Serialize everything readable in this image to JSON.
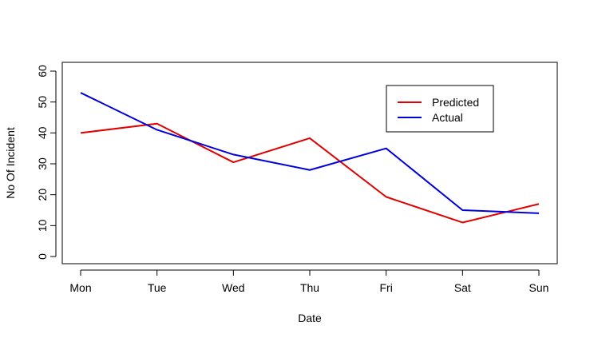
{
  "chart_data": {
    "type": "line",
    "title": "",
    "xlabel": "Date",
    "ylabel": "No Of Incident",
    "categories": [
      "Mon",
      "Tue",
      "Wed",
      "Thu",
      "Fri",
      "Sat",
      "Sun"
    ],
    "ylim": [
      0,
      60
    ],
    "yticks": [
      0,
      10,
      20,
      30,
      40,
      50,
      60
    ],
    "grid": false,
    "legend_position": "top-right",
    "series": [
      {
        "name": "Predicted",
        "color": "#e00000",
        "values": [
          40,
          43,
          30.5,
          38.3,
          19.3,
          11,
          17
        ]
      },
      {
        "name": "Actual",
        "color": "#0000dd",
        "values": [
          53,
          41,
          33,
          28,
          35,
          15,
          14
        ]
      }
    ]
  }
}
